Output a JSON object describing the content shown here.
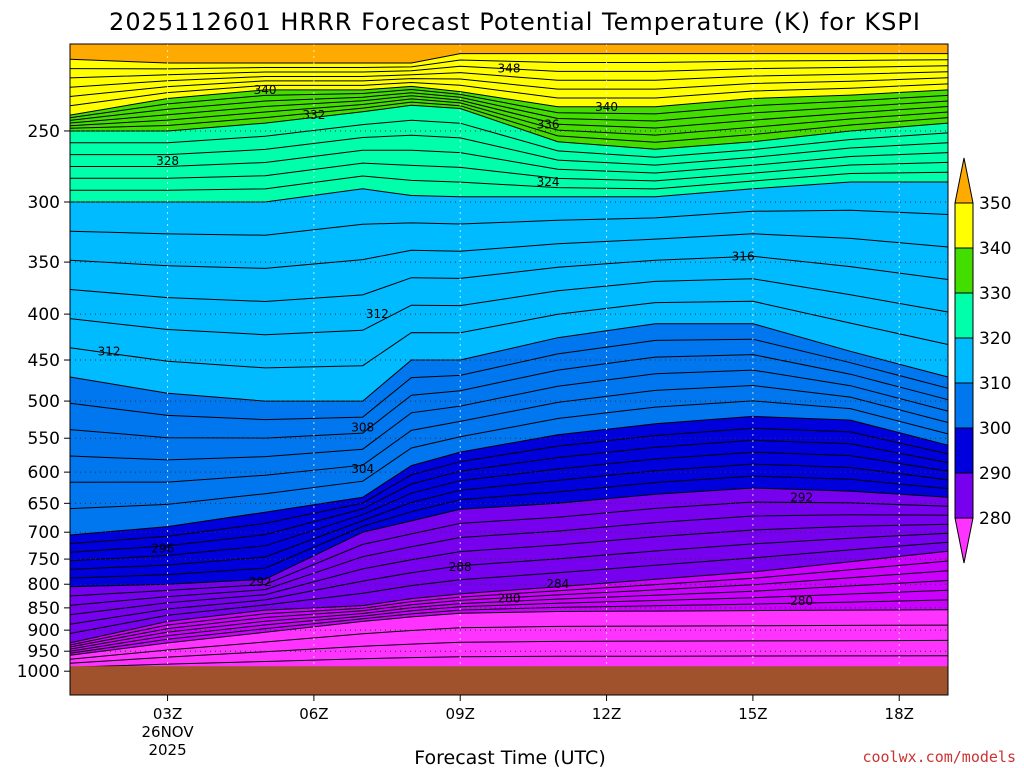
{
  "chart_data": {
    "type": "contour",
    "title": "2025112601 HRRR Forecast Potential Temperature (K) for KSPI",
    "xlabel": "Forecast Time (UTC)",
    "ylabel": "",
    "x_ticks": [
      "03Z",
      "06Z",
      "09Z",
      "12Z",
      "15Z",
      "18Z"
    ],
    "x_hours": [
      3,
      6,
      9,
      12,
      15,
      18
    ],
    "xlim_hours": [
      1,
      19
    ],
    "date_label_day": "26NOV",
    "date_label_year": "2025",
    "y_scale": "log-pressure (hPa), inverted",
    "y_ticks": [
      250,
      300,
      350,
      400,
      450,
      500,
      550,
      600,
      650,
      700,
      750,
      800,
      850,
      900,
      950,
      1000
    ],
    "ylim": [
      1015,
      200
    ],
    "colorbar": {
      "levels": [
        280,
        290,
        300,
        310,
        320,
        330,
        340,
        350
      ],
      "colors": [
        "#ff33ff",
        "#cc00ff",
        "#7700ee",
        "#0000dd",
        "#0077ee",
        "#00bbff",
        "#00ffaa",
        "#44dd00",
        "#ffff00",
        "#ffaa00"
      ]
    },
    "contour_labels": [
      {
        "value": "348",
        "hour": 10.0,
        "p": 213
      },
      {
        "value": "340",
        "hour": 5.0,
        "p": 225
      },
      {
        "value": "340",
        "hour": 12.0,
        "p": 235
      },
      {
        "value": "332",
        "hour": 6.0,
        "p": 240
      },
      {
        "value": "336",
        "hour": 10.8,
        "p": 246
      },
      {
        "value": "328",
        "hour": 3.0,
        "p": 270
      },
      {
        "value": "324",
        "hour": 10.8,
        "p": 285
      },
      {
        "value": "316",
        "hour": 14.8,
        "p": 345
      },
      {
        "value": "312",
        "hour": 7.3,
        "p": 400
      },
      {
        "value": "312",
        "hour": 1.8,
        "p": 440
      },
      {
        "value": "308",
        "hour": 7.0,
        "p": 535
      },
      {
        "value": "304",
        "hour": 7.0,
        "p": 595
      },
      {
        "value": "292",
        "hour": 16.0,
        "p": 640
      },
      {
        "value": "296",
        "hour": 2.9,
        "p": 730
      },
      {
        "value": "288",
        "hour": 9.0,
        "p": 765
      },
      {
        "value": "292",
        "hour": 4.9,
        "p": 795
      },
      {
        "value": "284",
        "hour": 11.0,
        "p": 800
      },
      {
        "value": "280",
        "hour": 10.0,
        "p": 830
      },
      {
        "value": "280",
        "hour": 16.0,
        "p": 835
      }
    ]
  },
  "credit": "coolwx.com/models",
  "colors": {
    "ground": "#a0522d",
    "grid": "#666666"
  }
}
